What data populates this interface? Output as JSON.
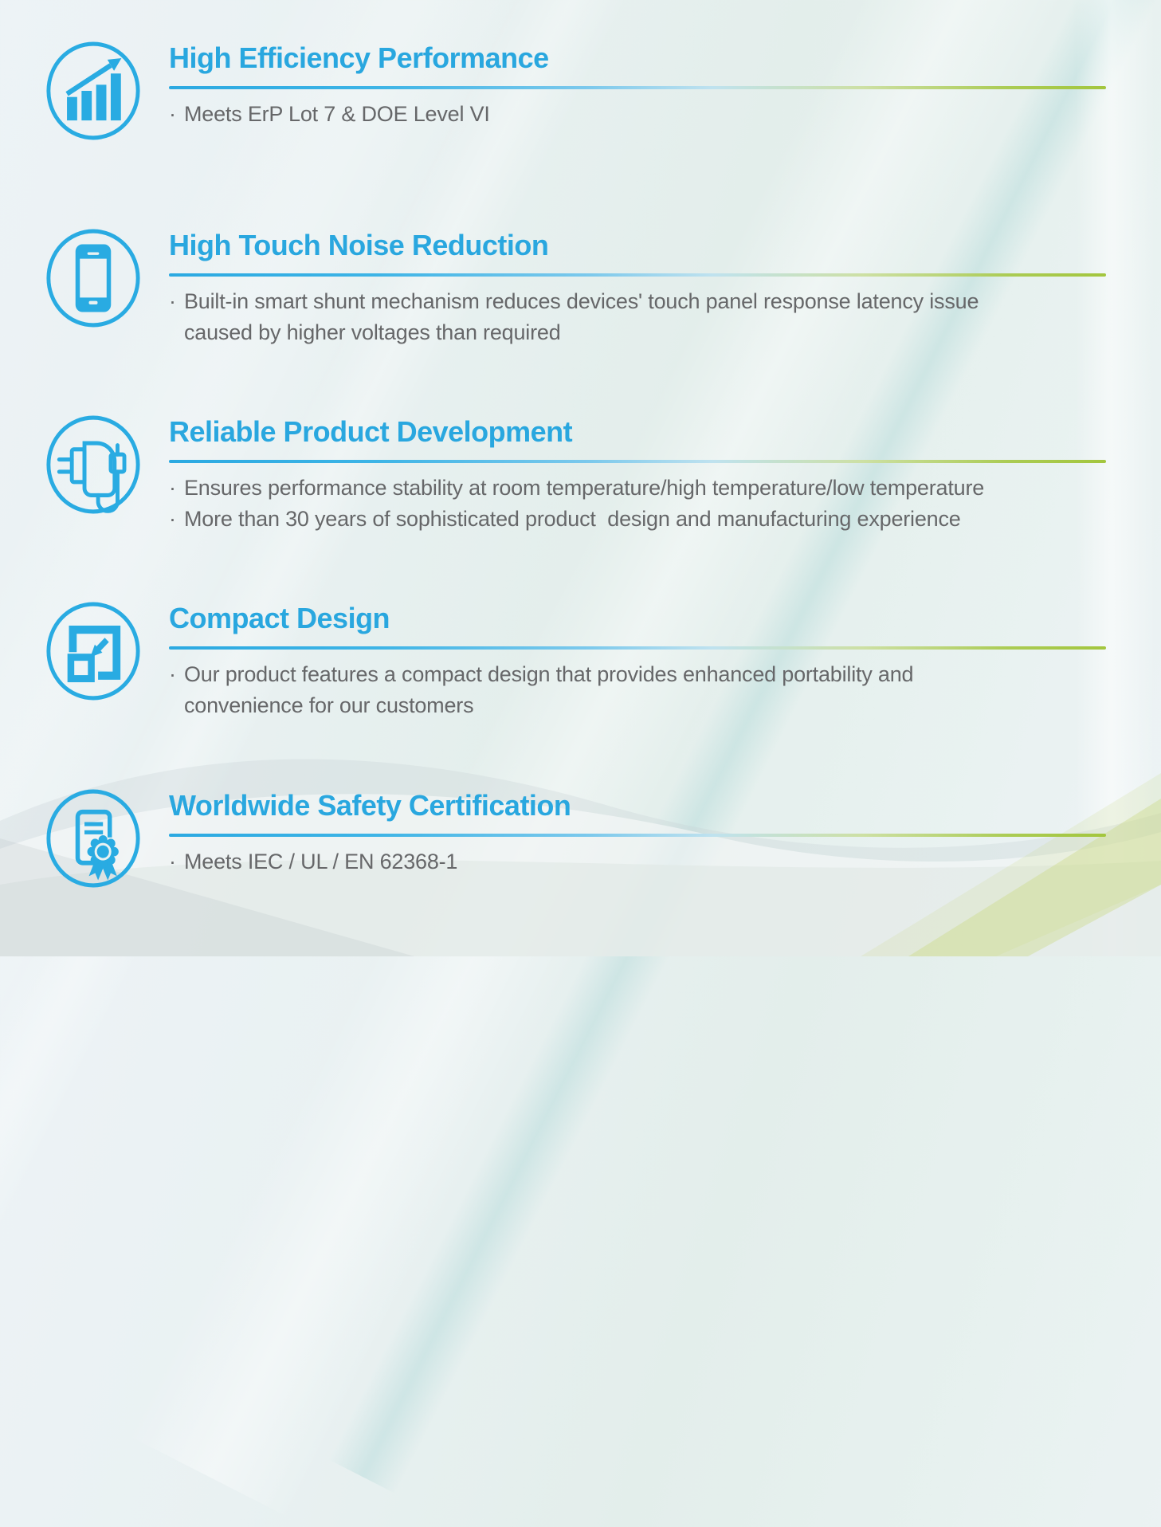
{
  "page": {
    "bullet_marker": "·",
    "colors": {
      "heading_blue": "#29a7df",
      "icon_blue": "#29abe2",
      "divider_gradient_start": "#2ba9e1",
      "divider_gradient_end": "#a3c63e",
      "body_gray": "#666769",
      "background_mint": "#e7f1ef"
    }
  },
  "sections": [
    {
      "id": "high-efficiency-performance",
      "icon": "bar-chart-growth-icon",
      "title": "High Efficiency Performance",
      "bullets": [
        "Meets ErP Lot 7 & DOE Level VI"
      ]
    },
    {
      "id": "high-touch-noise-reduction",
      "icon": "smartphone-icon",
      "title": "High Touch Noise Reduction",
      "bullets": [
        "Built-in smart shunt mechanism reduces devices' touch panel response latency issue\ncaused by higher voltages than required"
      ]
    },
    {
      "id": "reliable-product-development",
      "icon": "power-adapter-icon",
      "title": "Reliable Product Development",
      "bullets": [
        "Ensures performance stability at room temperature/high temperature/low temperature",
        "More than 30 years of sophisticated product  design and manufacturing experience"
      ]
    },
    {
      "id": "compact-design",
      "icon": "compact-design-icon",
      "title": "Compact Design",
      "bullets": [
        "Our product features a compact design that provides enhanced portability and\nconvenience for our customers"
      ]
    },
    {
      "id": "worldwide-safety-certification",
      "icon": "certificate-badge-icon",
      "title": "Worldwide Safety Certification",
      "bullets": [
        "Meets IEC / UL / EN 62368-1"
      ]
    }
  ]
}
